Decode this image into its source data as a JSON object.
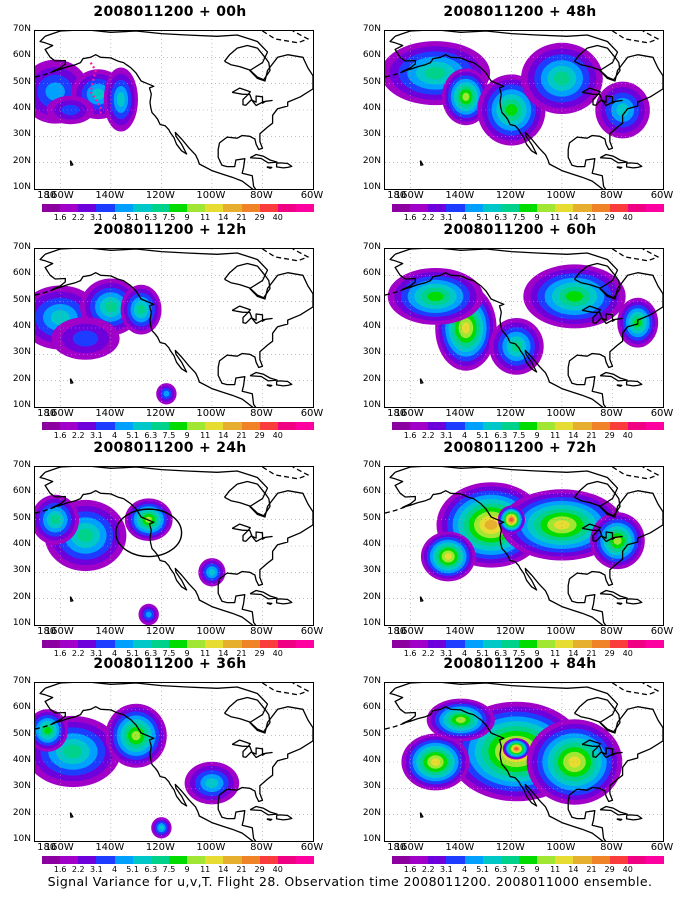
{
  "panels": [
    {
      "title": "2008011200 + 00h",
      "intensity": 0.25,
      "show_colorbar": true,
      "annotation": "dotted-track"
    },
    {
      "title": "2008011200 + 48h",
      "intensity": 0.55,
      "show_colorbar": true,
      "annotation": ""
    },
    {
      "title": "2008011200 + 12h",
      "intensity": 0.35,
      "show_colorbar": true,
      "annotation": ""
    },
    {
      "title": "2008011200 + 60h",
      "intensity": 0.65,
      "show_colorbar": true,
      "annotation": ""
    },
    {
      "title": "2008011200 + 24h",
      "intensity": 0.42,
      "show_colorbar": true,
      "annotation": "circle"
    },
    {
      "title": "2008011200 + 72h",
      "intensity": 0.75,
      "show_colorbar": true,
      "annotation": ""
    },
    {
      "title": "2008011200 + 36h",
      "intensity": 0.48,
      "show_colorbar": false,
      "annotation": ""
    },
    {
      "title": "2008011200 + 84h",
      "intensity": 0.85,
      "show_colorbar": true,
      "annotation": ""
    }
  ],
  "lat_labels": [
    "70N",
    "60N",
    "50N",
    "40N",
    "30N",
    "20N",
    "10N"
  ],
  "lon_labels": [
    "180",
    "160W",
    "140W",
    "120W",
    "100W",
    "80W",
    "60W"
  ],
  "colorbar_labels": [
    "1.6",
    "2.2",
    "3.1",
    "4",
    "5.1",
    "6.3",
    "7.5",
    "9",
    "11",
    "14",
    "21",
    "29",
    "40"
  ],
  "colorbar_colors": [
    "#a000c8",
    "#6e00dc",
    "#1e3cff",
    "#00a0ff",
    "#00c8c8",
    "#00d28c",
    "#00dc00",
    "#a0e632",
    "#e6dc32",
    "#e6af2d",
    "#f08228",
    "#fa3c3c",
    "#f00082"
  ],
  "caption": "Signal Variance for u,v,T. Flight 28. Observation time 2008011200. 2008011000 ensemble."
}
